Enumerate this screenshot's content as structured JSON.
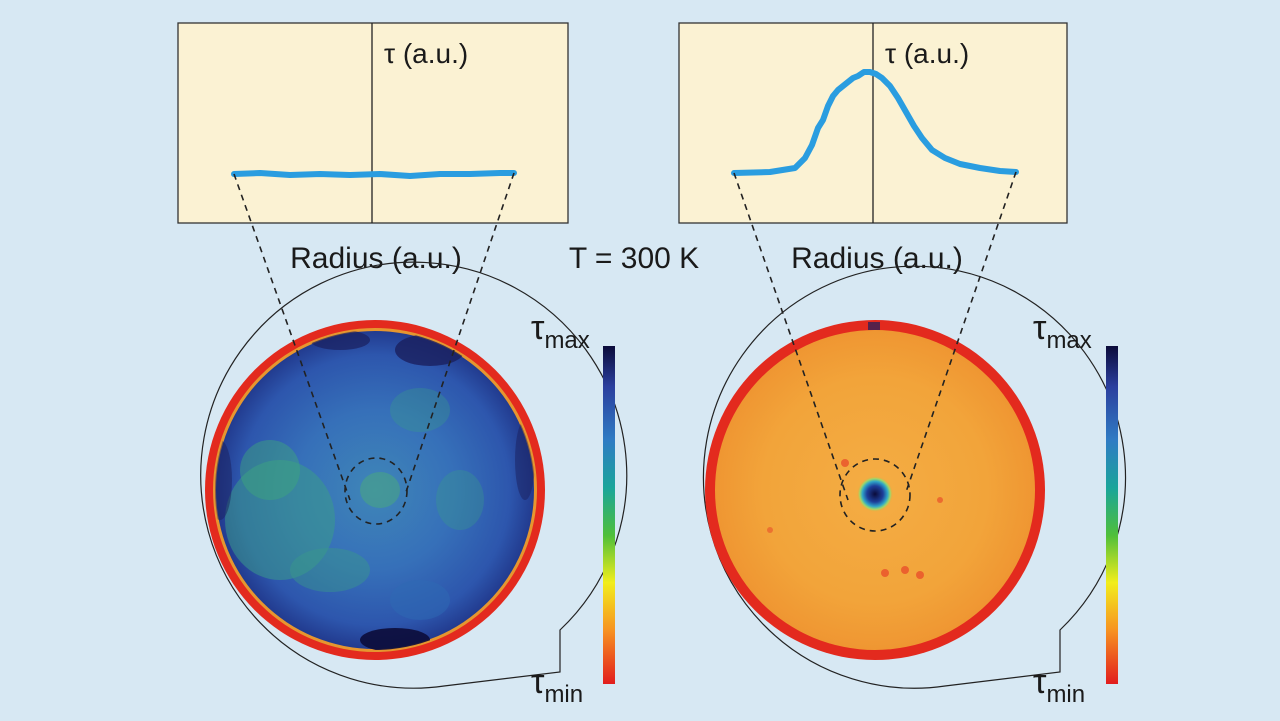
{
  "temperature_label": "T = 300 K",
  "left_panel": {
    "plot": {
      "y_label": "τ (a.u.)",
      "x_label": "Radius (a.u.)",
      "profile_shape": "flat"
    },
    "colorbar": {
      "max_label": "τ",
      "max_sub": "max",
      "min_label": "τ",
      "min_sub": "min"
    },
    "map_dominant_color": "blue"
  },
  "right_panel": {
    "plot": {
      "y_label": "τ (a.u.)",
      "x_label": "Radius (a.u.)",
      "profile_shape": "central peak"
    },
    "colorbar": {
      "max_label": "τ",
      "max_sub": "max",
      "min_label": "τ",
      "min_sub": "min"
    },
    "map_dominant_color": "orange"
  },
  "colors": {
    "background": "#d7e8f3",
    "plot_bg": "#fbf2d3",
    "curve": "#2a9de0",
    "wafer_rim": "#e32a1e",
    "wafer_left_fill": "#2f5fae",
    "wafer_right_fill": "#f0a33a"
  }
}
